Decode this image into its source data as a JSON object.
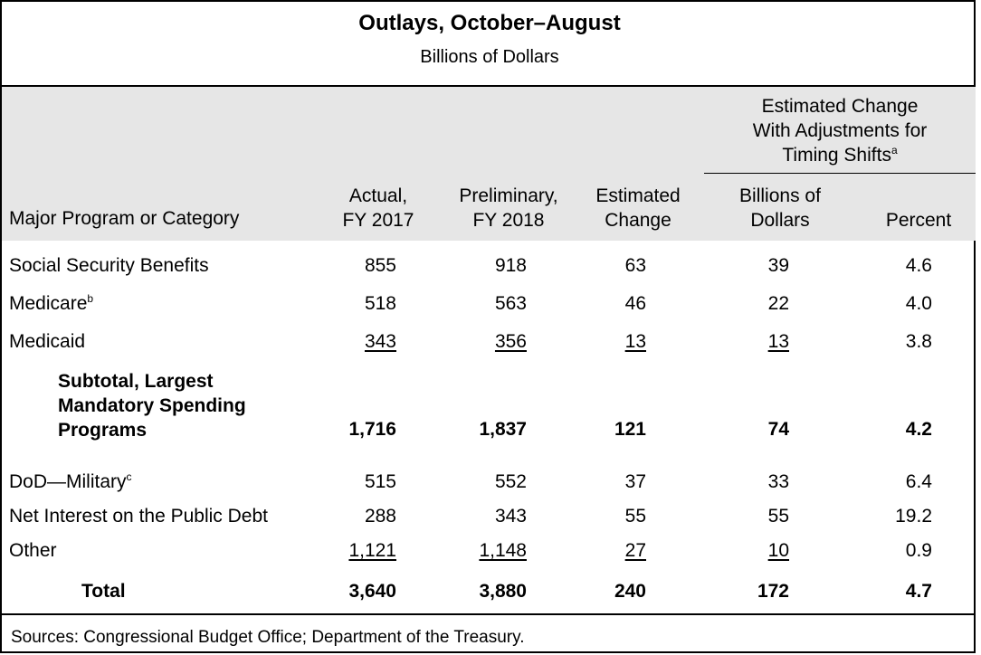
{
  "title": "Outlays, October–August",
  "subtitle": "Billions of Dollars",
  "columns": {
    "category": "Major Program or Category",
    "actual": [
      "Actual,",
      "FY 2017"
    ],
    "preliminary": [
      "Preliminary,",
      "FY 2018"
    ],
    "estimated": [
      "Estimated",
      "Change"
    ],
    "group": [
      "Estimated Change",
      "With Adjustments for",
      "Timing Shifts"
    ],
    "group_note": "a",
    "billions": [
      "Billions of",
      "Dollars"
    ],
    "percent": "Percent"
  },
  "rows": [
    {
      "label": "Social Security Benefits",
      "note": "",
      "actual": "855",
      "prelim": "918",
      "change": "63",
      "adj": "39",
      "pct": "4.6"
    },
    {
      "label": "Medicare",
      "note": "b",
      "actual": "518",
      "prelim": "563",
      "change": "46",
      "adj": "22",
      "pct": "4.0"
    },
    {
      "label": "Medicaid",
      "note": "",
      "actual": "343",
      "prelim": "356",
      "change": "13",
      "adj": "13",
      "pct": "3.8"
    },
    {
      "label": "",
      "note": "",
      "actual": "1,716",
      "prelim": "1,837",
      "change": "121",
      "adj": "74",
      "pct": "4.2"
    },
    {
      "label": "DoD—Military",
      "note": "c",
      "actual": "515",
      "prelim": "552",
      "change": "37",
      "adj": "33",
      "pct": "6.4"
    },
    {
      "label": "Net Interest on the Public Debt",
      "note": "",
      "actual": "288",
      "prelim": "343",
      "change": "55",
      "adj": "55",
      "pct": "19.2"
    },
    {
      "label": "Other",
      "note": "",
      "actual": "1,121",
      "prelim": "1,148",
      "change": "27",
      "adj": "10",
      "pct": "0.9"
    },
    {
      "label": "Total",
      "note": "",
      "actual": "3,640",
      "prelim": "3,880",
      "change": "240",
      "adj": "172",
      "pct": "4.7"
    }
  ],
  "subtotal_label": [
    "Subtotal, Largest",
    "Mandatory Spending",
    "Programs"
  ],
  "footer": "Sources: Congressional Budget Office; Department of the Treasury."
}
